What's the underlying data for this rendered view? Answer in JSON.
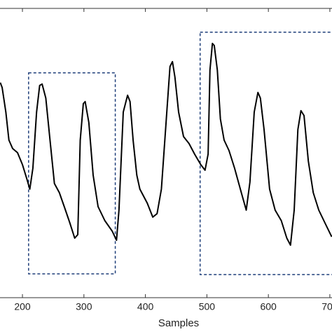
{
  "chart_data": {
    "type": "line",
    "xlabel": "Samples",
    "xlim": [
      163.5,
      703.5
    ],
    "ylim": [
      0,
      413
    ],
    "xticks": [
      200,
      300,
      400,
      500,
      600,
      700
    ],
    "color": "#000000",
    "box_color": "#1f3f7a",
    "x": [
      164,
      167,
      173,
      178,
      184,
      192,
      200,
      207,
      212,
      217,
      223,
      228,
      232,
      238,
      246,
      252,
      260,
      268,
      277,
      285,
      290,
      294,
      299,
      302,
      308,
      315,
      323,
      334,
      346,
      353,
      357,
      364,
      371,
      375,
      380,
      386,
      391,
      403,
      412,
      419,
      426,
      434,
      440,
      444,
      448,
      454,
      462,
      471,
      480,
      490,
      497,
      502,
      505,
      509,
      512,
      517,
      522,
      528,
      536,
      545,
      556,
      564,
      570,
      577,
      583,
      587,
      593,
      602,
      611,
      621,
      630,
      636,
      642,
      648,
      653,
      658,
      665,
      673,
      682,
      693,
      703
    ],
    "values": [
      307,
      300,
      265,
      225,
      213,
      207,
      190,
      170,
      155,
      185,
      265,
      303,
      305,
      285,
      215,
      163,
      150,
      130,
      107,
      85,
      90,
      225,
      277,
      280,
      250,
      175,
      130,
      110,
      95,
      82,
      125,
      265,
      289,
      280,
      225,
      175,
      155,
      135,
      115,
      120,
      155,
      255,
      330,
      337,
      315,
      265,
      230,
      220,
      205,
      190,
      182,
      205,
      325,
      363,
      360,
      325,
      255,
      225,
      210,
      185,
      150,
      125,
      165,
      265,
      293,
      285,
      240,
      155,
      125,
      110,
      85,
      75,
      125,
      240,
      267,
      260,
      195,
      150,
      125,
      105,
      87
    ],
    "boxes": [
      {
        "x": [
          210,
          351
        ],
        "y": [
          34,
          321
        ]
      },
      {
        "x": [
          489,
          712
        ],
        "y": [
          33,
          379
        ]
      }
    ]
  }
}
